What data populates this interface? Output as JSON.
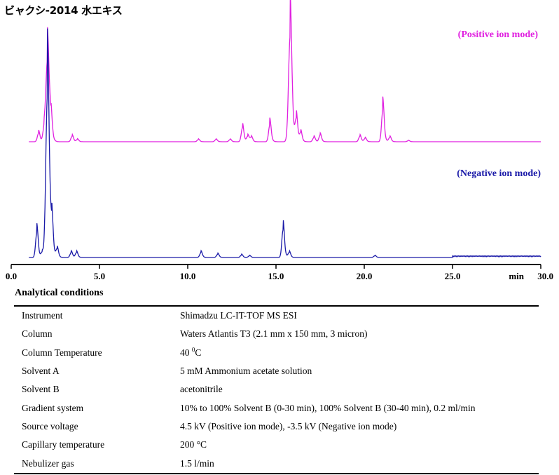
{
  "title": "ビャクシ-2014 水エキス",
  "chart_data": {
    "type": "line",
    "xlabel": "min",
    "xlim": [
      0,
      30
    ],
    "xticks": [
      0.0,
      5.0,
      10.0,
      15.0,
      20.0,
      25.0,
      30.0
    ],
    "xtick_labels": [
      "0.0",
      "5.0",
      "10.0",
      "15.0",
      "20.0",
      "25.0",
      "30.0"
    ],
    "series": [
      {
        "name": "(Positive ion mode)",
        "color": "#e020e0",
        "peaks": [
          {
            "t": 1.55,
            "h": 0.08
          },
          {
            "t": 1.85,
            "h": 0.1
          },
          {
            "t": 2.05,
            "h": 0.76
          },
          {
            "t": 2.25,
            "h": 0.18
          },
          {
            "t": 3.45,
            "h": 0.05
          },
          {
            "t": 3.75,
            "h": 0.02
          },
          {
            "t": 10.6,
            "h": 0.02
          },
          {
            "t": 11.6,
            "h": 0.02
          },
          {
            "t": 12.4,
            "h": 0.02
          },
          {
            "t": 13.1,
            "h": 0.13
          },
          {
            "t": 13.4,
            "h": 0.05
          },
          {
            "t": 13.6,
            "h": 0.04
          },
          {
            "t": 14.65,
            "h": 0.16
          },
          {
            "t": 15.8,
            "h": 1.0
          },
          {
            "t": 16.15,
            "h": 0.2
          },
          {
            "t": 16.4,
            "h": 0.08
          },
          {
            "t": 17.15,
            "h": 0.04
          },
          {
            "t": 17.5,
            "h": 0.06
          },
          {
            "t": 19.75,
            "h": 0.05
          },
          {
            "t": 20.05,
            "h": 0.03
          },
          {
            "t": 21.05,
            "h": 0.3
          },
          {
            "t": 21.45,
            "h": 0.04
          },
          {
            "t": 22.5,
            "h": 0.01
          }
        ]
      },
      {
        "name": "(Negative ion mode)",
        "color": "#1a1aa8",
        "peaks": [
          {
            "t": 1.45,
            "h": 0.15
          },
          {
            "t": 1.75,
            "h": 0.03
          },
          {
            "t": 2.05,
            "h": 1.0
          },
          {
            "t": 2.3,
            "h": 0.18
          },
          {
            "t": 2.6,
            "h": 0.05
          },
          {
            "t": 3.4,
            "h": 0.03
          },
          {
            "t": 3.7,
            "h": 0.03
          },
          {
            "t": 10.75,
            "h": 0.03
          },
          {
            "t": 11.7,
            "h": 0.02
          },
          {
            "t": 13.05,
            "h": 0.015
          },
          {
            "t": 13.5,
            "h": 0.01
          },
          {
            "t": 15.4,
            "h": 0.17
          },
          {
            "t": 15.75,
            "h": 0.03
          },
          {
            "t": 20.6,
            "h": 0.01
          }
        ]
      }
    ],
    "grid": false
  },
  "conditions": {
    "heading": "Analytical conditions",
    "rows": [
      {
        "label": "Instrument",
        "value": "Shimadzu LC-IT-TOF MS ESI"
      },
      {
        "label": "Column",
        "value": "Waters Atlantis T3 (2.1 mm x 150 mm, 3 micron)"
      },
      {
        "label": "Column Temperature",
        "value": "40 ",
        "sup": "0",
        "suffix": "C"
      },
      {
        "label": "Solvent A",
        "value": "5 mM Ammonium acetate solution"
      },
      {
        "label": "Solvent B",
        "value": "acetonitrile"
      },
      {
        "label": "Gradient system",
        "value": "10% to 100% Solvent B (0-30 min), 100% Solvent B (30-40 min), 0.2 ml/min"
      },
      {
        "label": "Source voltage",
        "value": "4.5 kV (Positive ion mode), -3.5 kV (Negative ion mode)"
      },
      {
        "label": "Capillary temperature",
        "value": "200 °C"
      },
      {
        "label": "Nebulizer gas",
        "value": "1.5 l/min"
      }
    ]
  }
}
